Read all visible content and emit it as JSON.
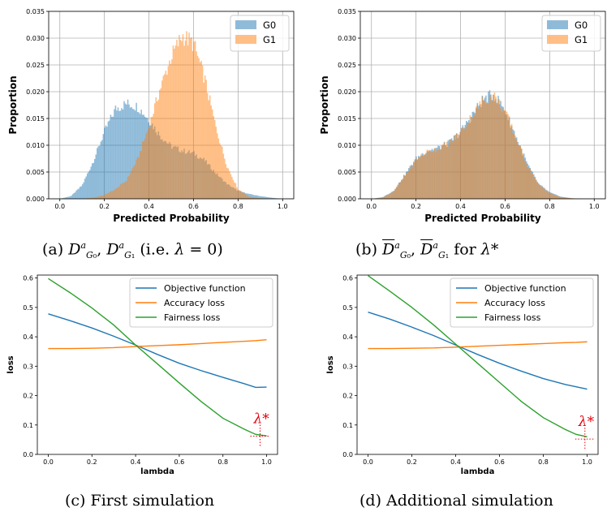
{
  "captions": {
    "a": "(a) D^a_{G_0}, D^a_{G_1} (i.e. λ = 0)",
    "b": "(b) D̄^a_{G_0}, D̄^a_{G_1} for λ*",
    "c": "(c) First simulation",
    "d": "(d) Additional simulation"
  },
  "colors": {
    "g0": "#1f77b4",
    "g1": "#ff7f0e",
    "objective": "#1f77b4",
    "accuracy": "#ff7f0e",
    "fairness": "#2ca02c",
    "lambda_marker": "#e8000b"
  },
  "lambda_star_label": "λ*",
  "chart_data": [
    {
      "type": "histogram",
      "panel": "a",
      "xlabel": "Predicted Probability",
      "ylabel": "Proportion",
      "xlim": [
        -0.05,
        1.05
      ],
      "ylim": [
        0,
        0.035
      ],
      "xticks": [
        "0.0",
        "0.2",
        "0.4",
        "0.6",
        "0.8",
        "1.0"
      ],
      "yticks": [
        "0.000",
        "0.005",
        "0.010",
        "0.015",
        "0.020",
        "0.025",
        "0.030",
        "0.035"
      ],
      "grid": true,
      "legend": "top-right",
      "series": [
        {
          "name": "G0",
          "x": [
            0.0,
            0.05,
            0.1,
            0.15,
            0.2,
            0.25,
            0.3,
            0.35,
            0.4,
            0.45,
            0.5,
            0.55,
            0.6,
            0.65,
            0.7,
            0.75,
            0.8,
            0.85,
            0.9,
            0.95,
            1.0
          ],
          "values": [
            0.0,
            0.0005,
            0.0025,
            0.007,
            0.0125,
            0.0168,
            0.0178,
            0.0172,
            0.0148,
            0.0118,
            0.0098,
            0.009,
            0.0085,
            0.0072,
            0.0048,
            0.0028,
            0.0015,
            0.0009,
            0.0005,
            0.0002,
            0.0
          ]
        },
        {
          "name": "G1",
          "x": [
            0.0,
            0.05,
            0.1,
            0.15,
            0.2,
            0.25,
            0.3,
            0.35,
            0.4,
            0.45,
            0.5,
            0.55,
            0.6,
            0.65,
            0.7,
            0.75,
            0.8,
            0.85,
            0.9,
            0.95,
            1.0
          ],
          "values": [
            0.0,
            0.0,
            0.0,
            0.0002,
            0.0007,
            0.0018,
            0.0035,
            0.0075,
            0.0135,
            0.0205,
            0.0265,
            0.0305,
            0.029,
            0.0225,
            0.0135,
            0.0062,
            0.0018,
            0.0004,
            0.0001,
            0.0,
            0.0
          ]
        }
      ]
    },
    {
      "type": "histogram",
      "panel": "b",
      "xlabel": "Predicted Probability",
      "ylabel": "Proportion",
      "xlim": [
        -0.05,
        1.05
      ],
      "ylim": [
        0,
        0.035
      ],
      "xticks": [
        "0.0",
        "0.2",
        "0.4",
        "0.6",
        "0.8",
        "1.0"
      ],
      "yticks": [
        "0.000",
        "0.005",
        "0.010",
        "0.015",
        "0.020",
        "0.025",
        "0.030",
        "0.035"
      ],
      "grid": true,
      "legend": "top-right",
      "series": [
        {
          "name": "G0",
          "x": [
            0.0,
            0.05,
            0.1,
            0.15,
            0.2,
            0.25,
            0.3,
            0.35,
            0.4,
            0.45,
            0.5,
            0.55,
            0.6,
            0.65,
            0.7,
            0.75,
            0.8,
            0.85,
            0.9,
            0.95,
            1.0
          ],
          "values": [
            0.0,
            0.0003,
            0.0015,
            0.0045,
            0.0075,
            0.009,
            0.0095,
            0.0105,
            0.0125,
            0.0155,
            0.0185,
            0.0195,
            0.0165,
            0.0115,
            0.0065,
            0.0028,
            0.0012,
            0.0004,
            0.0001,
            0.0,
            0.0
          ]
        },
        {
          "name": "G1",
          "x": [
            0.0,
            0.05,
            0.1,
            0.15,
            0.2,
            0.25,
            0.3,
            0.35,
            0.4,
            0.45,
            0.5,
            0.55,
            0.6,
            0.65,
            0.7,
            0.75,
            0.8,
            0.85,
            0.9,
            0.95,
            1.0
          ],
          "values": [
            0.0,
            0.0002,
            0.0014,
            0.0043,
            0.0073,
            0.0088,
            0.0094,
            0.0104,
            0.0124,
            0.0154,
            0.0184,
            0.0193,
            0.0163,
            0.0113,
            0.0063,
            0.0027,
            0.0011,
            0.0003,
            0.0001,
            0.0,
            0.0
          ]
        }
      ]
    },
    {
      "type": "line",
      "panel": "c",
      "xlabel": "lambda",
      "ylabel": "loss",
      "xlim": [
        -0.05,
        1.05
      ],
      "ylim": [
        0.0,
        0.61
      ],
      "xticks": [
        "0.0",
        "0.2",
        "0.4",
        "0.6",
        "0.8",
        "1.0"
      ],
      "yticks": [
        "0.0",
        "0.1",
        "0.2",
        "0.3",
        "0.4",
        "0.5",
        "0.6"
      ],
      "grid": false,
      "legend": "top-right",
      "x": [
        0.0,
        0.1,
        0.2,
        0.3,
        0.4,
        0.5,
        0.6,
        0.7,
        0.8,
        0.9,
        0.95,
        1.0
      ],
      "series": [
        {
          "name": "Objective function",
          "values": [
            0.478,
            0.455,
            0.43,
            0.402,
            0.372,
            0.34,
            0.31,
            0.285,
            0.262,
            0.24,
            0.228,
            0.229
          ]
        },
        {
          "name": "Accuracy loss",
          "values": [
            0.36,
            0.36,
            0.361,
            0.363,
            0.367,
            0.37,
            0.373,
            0.377,
            0.381,
            0.385,
            0.387,
            0.39
          ]
        },
        {
          "name": "Fairness loss",
          "values": [
            0.598,
            0.55,
            0.498,
            0.44,
            0.372,
            0.308,
            0.243,
            0.18,
            0.123,
            0.085,
            0.068,
            0.063
          ]
        }
      ],
      "lambda_star": {
        "x": 0.97,
        "y": 0.062
      }
    },
    {
      "type": "line",
      "panel": "d",
      "xlabel": "lambda",
      "ylabel": "loss",
      "xlim": [
        -0.05,
        1.05
      ],
      "ylim": [
        0.0,
        0.61
      ],
      "xticks": [
        "0.0",
        "0.2",
        "0.4",
        "0.6",
        "0.8",
        "1.0"
      ],
      "yticks": [
        "0.0",
        "0.1",
        "0.2",
        "0.3",
        "0.4",
        "0.5",
        "0.6"
      ],
      "grid": false,
      "legend": "top-right",
      "x": [
        0.0,
        0.1,
        0.2,
        0.3,
        0.4,
        0.5,
        0.6,
        0.7,
        0.8,
        0.9,
        0.95,
        1.0
      ],
      "series": [
        {
          "name": "Objective function",
          "values": [
            0.484,
            0.46,
            0.433,
            0.404,
            0.372,
            0.34,
            0.31,
            0.283,
            0.258,
            0.238,
            0.23,
            0.222
          ]
        },
        {
          "name": "Accuracy loss",
          "values": [
            0.36,
            0.36,
            0.361,
            0.362,
            0.365,
            0.368,
            0.371,
            0.374,
            0.377,
            0.38,
            0.381,
            0.383
          ]
        },
        {
          "name": "Fairness loss",
          "values": [
            0.608,
            0.555,
            0.5,
            0.44,
            0.375,
            0.31,
            0.245,
            0.18,
            0.125,
            0.085,
            0.068,
            0.06
          ]
        }
      ],
      "lambda_star": {
        "x": 0.99,
        "y": 0.052
      }
    }
  ]
}
